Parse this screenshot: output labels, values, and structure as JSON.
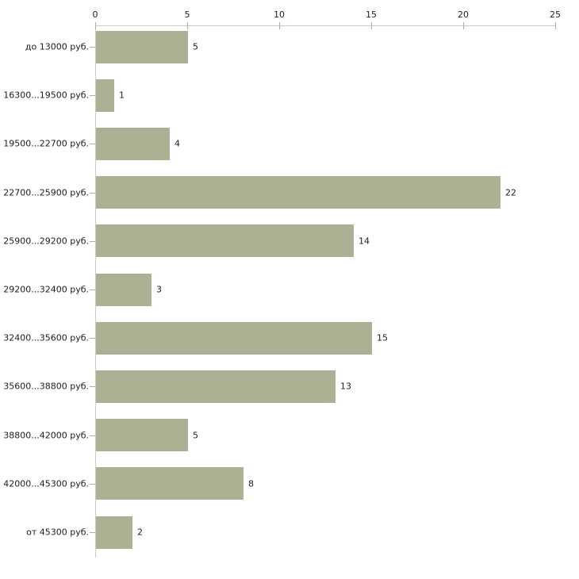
{
  "chart_data": {
    "type": "bar",
    "orientation": "horizontal",
    "categories": [
      "до 13000 руб.",
      "16300...19500 руб.",
      "19500...22700 руб.",
      "22700...25900 руб.",
      "25900...29200 руб.",
      "29200...32400 руб.",
      "32400...35600 руб.",
      "35600...38800 руб.",
      "38800...42000 руб.",
      "42000...45300 руб.",
      "от 45300 руб."
    ],
    "values": [
      5,
      1,
      4,
      22,
      14,
      3,
      15,
      13,
      5,
      8,
      2
    ],
    "value_labels": [
      "5",
      "1",
      "4",
      "22",
      "14",
      "3",
      "15",
      "13",
      "5",
      "8",
      "2"
    ],
    "x_ticks": [
      0,
      5,
      10,
      15,
      20,
      25
    ],
    "x_tick_labels": [
      "0",
      "5",
      "10",
      "15",
      "20",
      "25"
    ],
    "xlim": [
      0,
      25
    ],
    "axis_position": "top",
    "grid": false,
    "legend": null,
    "colors": {
      "bar_fill": "#abb294",
      "axis_line": "#ccccc4",
      "tick_mark": "#b3b085",
      "text": "#1c1c1c",
      "background": "#ffffff"
    }
  }
}
